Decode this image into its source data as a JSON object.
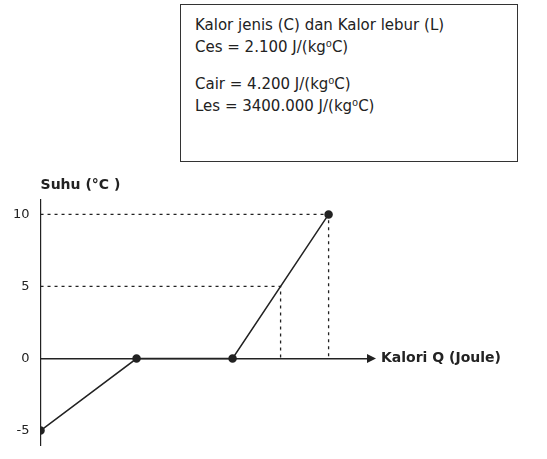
{
  "chart_data": {
    "type": "line",
    "annotations": [
      "Kalor jenis (C) dan Kalor lebur (L)",
      "Ces = 2.100 J/(kg⁰C)",
      "Cair = 4.200 J/(kg⁰C)",
      "Les = 3400.000 J/(kg⁰C)"
    ],
    "y_label": "Suhu (°C )",
    "x_label": "Kalori Q (Joule)",
    "x": [
      0,
      1,
      2,
      3
    ],
    "values": [
      -5,
      0,
      0,
      10
    ],
    "color": "#222222",
    "xlim": [
      0,
      3.4
    ],
    "ylim": [
      -6,
      11
    ],
    "yticks": [
      -5,
      0,
      5,
      10
    ],
    "tick_labels": "y",
    "grid": false,
    "legend": false,
    "marker": "circle",
    "line_style": "solid",
    "guides": [
      {
        "x": 3,
        "y": 10
      },
      {
        "x": 2.5,
        "y": 5
      }
    ]
  }
}
